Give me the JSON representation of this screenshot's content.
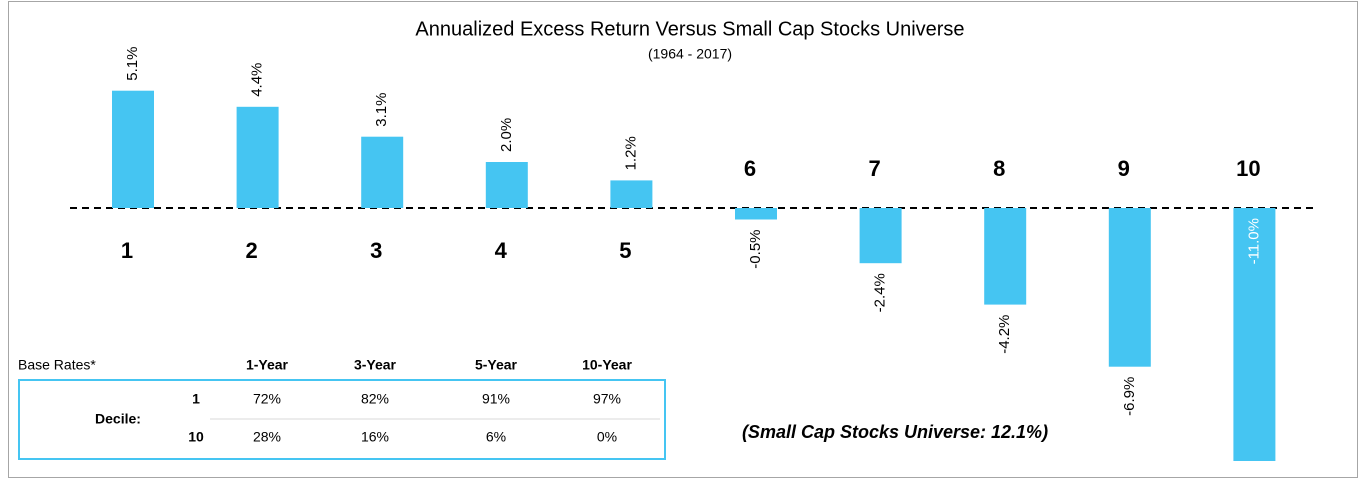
{
  "chart_data": {
    "type": "bar",
    "title": "Annualized Excess Return Versus Small Cap Stocks Universe",
    "subtitle": "(1964 - 2017)",
    "categories": [
      "1",
      "2",
      "3",
      "4",
      "5",
      "6",
      "7",
      "8",
      "9",
      "10"
    ],
    "values": [
      5.1,
      4.4,
      3.1,
      2,
      1.2,
      -0.5,
      -2.4,
      -4.2,
      -6.9,
      -11
    ],
    "value_labels": [
      "5.1%",
      "4.4%",
      "3.1%",
      "2.0%",
      "1.2%",
      "-0.5%",
      "-2.4%",
      "-4.2%",
      "-6.9%",
      "-11.0%"
    ],
    "color": "#45c5f2",
    "annotation": "(Small Cap Stocks Universe: 12.1%)"
  },
  "table": {
    "title": "Base Rates*",
    "columns": [
      "1-Year",
      "3-Year",
      "5-Year",
      "10-Year"
    ],
    "row_label": "Decile:",
    "rows": [
      {
        "name": "1",
        "values": [
          "72%",
          "82%",
          "91%",
          "97%"
        ]
      },
      {
        "name": "10",
        "values": [
          "28%",
          "16%",
          "6%",
          "0%"
        ]
      }
    ]
  }
}
